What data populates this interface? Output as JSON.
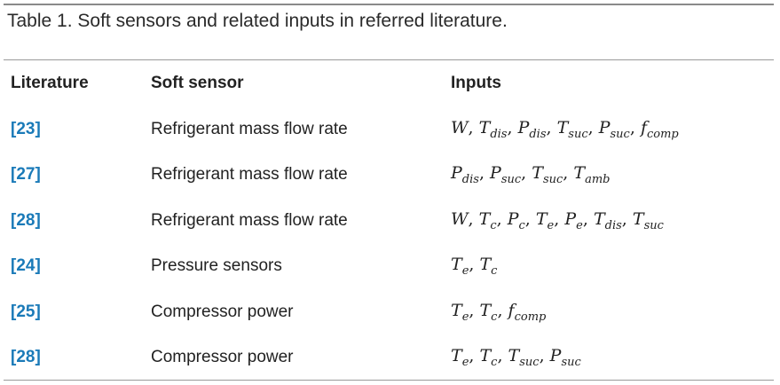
{
  "caption": "Table 1. Soft sensors and related inputs in referred literature.",
  "headers": {
    "literature": "Literature",
    "soft_sensor": "Soft sensor",
    "inputs": "Inputs"
  },
  "rows": [
    {
      "ref": "[23]",
      "sensor": "Refrigerant mass flow rate",
      "inputs": [
        [
          "W",
          ""
        ],
        [
          "T",
          "dis"
        ],
        [
          "P",
          "dis"
        ],
        [
          "T",
          "suc"
        ],
        [
          "P",
          "suc"
        ],
        [
          "f",
          "comp"
        ]
      ]
    },
    {
      "ref": "[27]",
      "sensor": "Refrigerant mass flow rate",
      "inputs": [
        [
          "P",
          "dis"
        ],
        [
          "P",
          "suc"
        ],
        [
          "T",
          "suc"
        ],
        [
          "T",
          "amb"
        ]
      ]
    },
    {
      "ref": "[28]",
      "sensor": "Refrigerant mass flow rate",
      "inputs": [
        [
          "W",
          ""
        ],
        [
          "T",
          "c"
        ],
        [
          "P",
          "c"
        ],
        [
          "T",
          "e"
        ],
        [
          "P",
          "e"
        ],
        [
          "T",
          "dis"
        ],
        [
          "T",
          "suc"
        ]
      ]
    },
    {
      "ref": "[24]",
      "sensor": "Pressure sensors",
      "inputs": [
        [
          "T",
          "e"
        ],
        [
          "T",
          "c"
        ]
      ]
    },
    {
      "ref": "[25]",
      "sensor": "Compressor power",
      "inputs": [
        [
          "T",
          "e"
        ],
        [
          "T",
          "c"
        ],
        [
          "f",
          "comp"
        ]
      ]
    },
    {
      "ref": "[28]",
      "sensor": "Compressor power",
      "inputs": [
        [
          "T",
          "e"
        ],
        [
          "T",
          "c"
        ],
        [
          "T",
          "suc"
        ],
        [
          "P",
          "suc"
        ]
      ]
    }
  ],
  "colors": {
    "reference_link": "#1a7ab8",
    "rules": "#8a8a8a"
  }
}
